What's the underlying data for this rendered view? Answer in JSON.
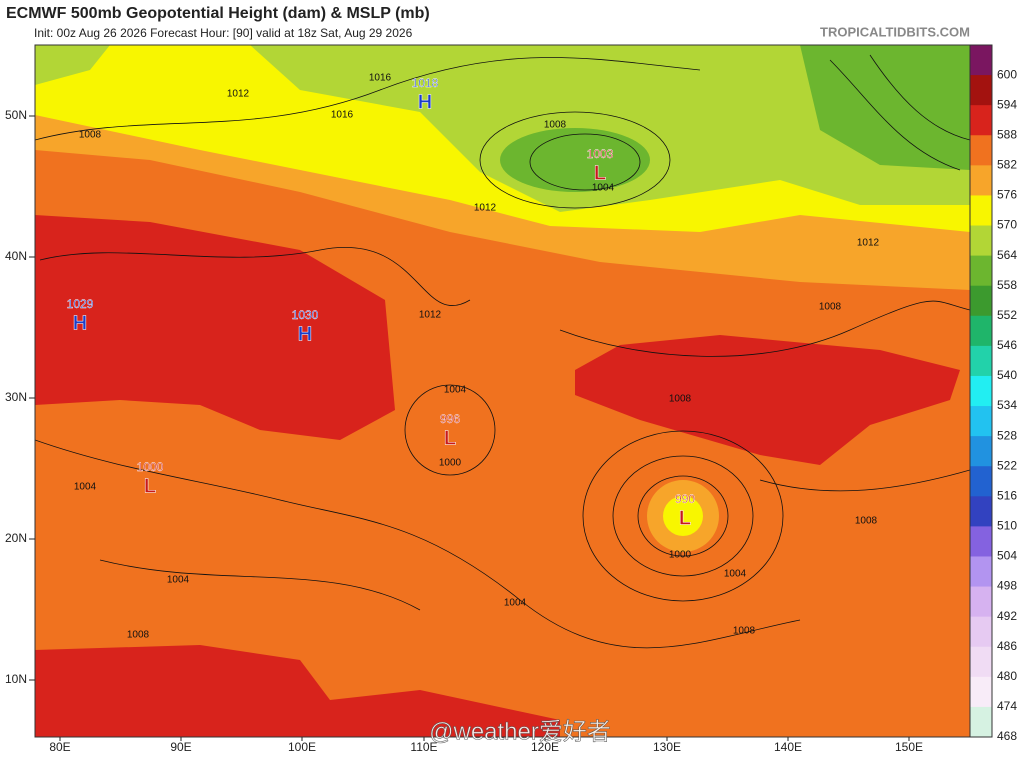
{
  "header": {
    "title": "ECMWF 500mb Geopotential Height (dam) & MSLP (mb)",
    "subtitle": "Init: 00z Aug 26 2026   Forecast Hour: [90]   valid at 18z Sat, Aug 29 2026",
    "site": "TROPICALTIDBITS.COM"
  },
  "lat_labels": [
    "50N",
    "40N",
    "30N",
    "20N",
    "10N"
  ],
  "lon_labels": [
    "80E",
    "90E",
    "100E",
    "110E",
    "120E",
    "130E",
    "140E",
    "150E"
  ],
  "colorbar": [
    {
      "label": "600",
      "color": "#7a1660"
    },
    {
      "label": "594",
      "color": "#a3120f"
    },
    {
      "label": "588",
      "color": "#d8231c"
    },
    {
      "label": "582",
      "color": "#f0721f"
    },
    {
      "label": "576",
      "color": "#f7a52a"
    },
    {
      "label": "570",
      "color": "#f8f600"
    },
    {
      "label": "564",
      "color": "#b2d636"
    },
    {
      "label": "558",
      "color": "#6cb62f"
    },
    {
      "label": "552",
      "color": "#3c9a2e"
    },
    {
      "label": "546",
      "color": "#1fb56a"
    },
    {
      "label": "540",
      "color": "#22d2aa"
    },
    {
      "label": "534",
      "color": "#22eef2"
    },
    {
      "label": "528",
      "color": "#22c2f0"
    },
    {
      "label": "522",
      "color": "#2192e0"
    },
    {
      "label": "516",
      "color": "#2262d0"
    },
    {
      "label": "510",
      "color": "#3242c0"
    },
    {
      "label": "504",
      "color": "#8462e0"
    },
    {
      "label": "498",
      "color": "#b294f0"
    },
    {
      "label": "492",
      "color": "#d6b2f0"
    },
    {
      "label": "486",
      "color": "#e6caf2"
    },
    {
      "label": "480",
      "color": "#f0dcf4"
    },
    {
      "label": "474",
      "color": "#f8ecf8"
    },
    {
      "label": "468",
      "color": "#d6f2e2"
    }
  ],
  "pressure_centers": [
    {
      "kind": "H",
      "value": "1018"
    },
    {
      "kind": "H",
      "value": "1029"
    },
    {
      "kind": "H",
      "value": "1030"
    },
    {
      "kind": "L",
      "value": "1003"
    },
    {
      "kind": "L",
      "value": "996"
    },
    {
      "kind": "L",
      "value": "1000"
    },
    {
      "kind": "L",
      "value": "990"
    }
  ],
  "isobar_labels": [
    "1016",
    "1012",
    "1008",
    "1016",
    "1008",
    "1004",
    "1012",
    "1012",
    "1008",
    "1008",
    "1004",
    "1000",
    "1004",
    "1004",
    "1004",
    "1004",
    "1008",
    "1008",
    "1008",
    "1000",
    "1012"
  ],
  "watermark": "@weather爱好者"
}
